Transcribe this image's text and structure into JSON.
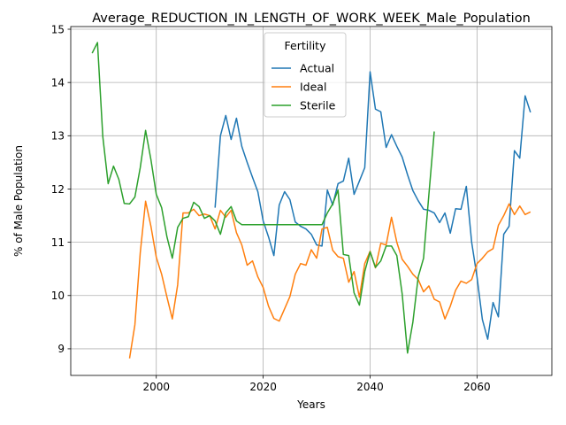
{
  "chart_data": {
    "type": "line",
    "title": "Average_REDUCTION_IN_LENGTH_OF_WORK_WEEK_Male_Population",
    "xlabel": "Years",
    "ylabel": "% of Male Population",
    "xlim": [
      1984,
      2074
    ],
    "ylim": [
      8.5,
      15.05
    ],
    "xticks": [
      2000,
      2020,
      2040,
      2060
    ],
    "yticks": [
      9,
      10,
      11,
      12,
      13,
      14,
      15
    ],
    "grid": true,
    "legend": {
      "title": "Fertility",
      "placement": "top-center"
    },
    "series": [
      {
        "name": "Actual",
        "color": "#1f77b4",
        "x": [
          2011,
          2012,
          2013,
          2014,
          2015,
          2016,
          2017,
          2018,
          2019,
          2020,
          2021,
          2022,
          2023,
          2024,
          2025,
          2026,
          2027,
          2028,
          2029,
          2030,
          2031,
          2032,
          2033,
          2034,
          2035,
          2036,
          2037,
          2038,
          2039,
          2040,
          2041,
          2042,
          2043,
          2044,
          2045,
          2046,
          2047,
          2048,
          2049,
          2050,
          2051,
          2052,
          2053,
          2054,
          2055,
          2056,
          2057,
          2058,
          2059,
          2060,
          2061,
          2062,
          2063,
          2064,
          2065,
          2066,
          2067,
          2068,
          2069,
          2070
        ],
        "y": [
          11.65,
          13.0,
          13.38,
          12.93,
          13.33,
          12.8,
          12.5,
          12.22,
          11.95,
          11.4,
          11.1,
          10.75,
          11.7,
          11.95,
          11.8,
          11.38,
          11.3,
          11.25,
          11.15,
          10.95,
          10.93,
          11.98,
          11.7,
          12.1,
          12.15,
          12.58,
          11.9,
          12.15,
          12.4,
          14.2,
          13.5,
          13.45,
          12.78,
          13.02,
          12.8,
          12.6,
          12.27,
          11.97,
          11.78,
          11.62,
          11.6,
          11.55,
          11.37,
          11.55,
          11.17,
          11.63,
          11.62,
          12.05,
          11.0,
          10.35,
          9.55,
          9.18,
          9.87,
          9.6,
          11.15,
          11.3,
          12.72,
          12.58,
          13.75,
          13.44
        ]
      },
      {
        "name": "Ideal",
        "color": "#ff7f0e",
        "x": [
          1995,
          1996,
          1997,
          1998,
          1999,
          2000,
          2001,
          2002,
          2003,
          2004,
          2005,
          2006,
          2007,
          2008,
          2009,
          2010,
          2011,
          2012,
          2013,
          2014,
          2015,
          2016,
          2017,
          2018,
          2019,
          2020,
          2021,
          2022,
          2023,
          2024,
          2025,
          2026,
          2027,
          2028,
          2029,
          2030,
          2031,
          2032,
          2033,
          2034,
          2035,
          2036,
          2037,
          2038,
          2039,
          2040,
          2041,
          2042,
          2043,
          2044,
          2045,
          2046,
          2047,
          2048,
          2049,
          2050,
          2051,
          2052,
          2053,
          2054,
          2055,
          2056,
          2057,
          2058,
          2059,
          2060,
          2061,
          2062,
          2063,
          2064,
          2065,
          2066,
          2067,
          2068,
          2069,
          2070
        ],
        "y": [
          8.82,
          9.45,
          10.8,
          11.77,
          11.3,
          10.72,
          10.4,
          9.97,
          9.56,
          10.2,
          11.55,
          11.55,
          11.62,
          11.5,
          11.53,
          11.5,
          11.25,
          11.6,
          11.47,
          11.6,
          11.18,
          10.95,
          10.57,
          10.65,
          10.35,
          10.15,
          9.8,
          9.57,
          9.52,
          9.75,
          9.98,
          10.4,
          10.6,
          10.57,
          10.86,
          10.7,
          11.25,
          11.28,
          10.85,
          10.73,
          10.7,
          10.25,
          10.45,
          9.97,
          10.6,
          10.83,
          10.52,
          10.98,
          10.95,
          11.47,
          11.0,
          10.68,
          10.55,
          10.4,
          10.3,
          10.07,
          10.18,
          9.93,
          9.88,
          9.56,
          9.8,
          10.1,
          10.27,
          10.23,
          10.3,
          10.6,
          10.7,
          10.82,
          10.88,
          11.32,
          11.5,
          11.72,
          11.52,
          11.68,
          11.52,
          11.57
        ]
      },
      {
        "name": "Sterile",
        "color": "#2ca02c",
        "x": [
          1988,
          1989,
          1990,
          1991,
          1992,
          1993,
          1994,
          1995,
          1996,
          1997,
          1998,
          1999,
          2000,
          2001,
          2002,
          2003,
          2004,
          2005,
          2006,
          2007,
          2008,
          2009,
          2010,
          2011,
          2012,
          2013,
          2014,
          2015,
          2016,
          2017,
          2018,
          2019,
          2020,
          2021,
          2022,
          2023,
          2024,
          2025,
          2026,
          2027,
          2028,
          2029,
          2030,
          2031,
          2032,
          2033,
          2034,
          2035,
          2036,
          2037,
          2038,
          2039,
          2040,
          2041,
          2042,
          2043,
          2044,
          2045,
          2046,
          2047,
          2048,
          2049,
          2050,
          2051,
          2052
        ],
        "y": [
          14.55,
          14.75,
          12.98,
          12.1,
          12.43,
          12.18,
          11.73,
          11.72,
          11.85,
          12.4,
          13.1,
          12.55,
          11.9,
          11.65,
          11.1,
          10.7,
          11.28,
          11.45,
          11.48,
          11.75,
          11.67,
          11.45,
          11.5,
          11.4,
          11.15,
          11.55,
          11.67,
          11.4,
          11.33,
          11.33,
          11.33,
          11.33,
          11.33,
          11.33,
          11.33,
          11.33,
          11.33,
          11.33,
          11.33,
          11.33,
          11.33,
          11.33,
          11.33,
          11.33,
          11.55,
          11.72,
          11.98,
          10.77,
          10.75,
          10.05,
          9.82,
          10.45,
          10.82,
          10.53,
          10.65,
          10.93,
          10.93,
          10.75,
          10.03,
          8.92,
          9.5,
          10.35,
          10.7,
          11.9,
          13.08
        ]
      }
    ]
  }
}
